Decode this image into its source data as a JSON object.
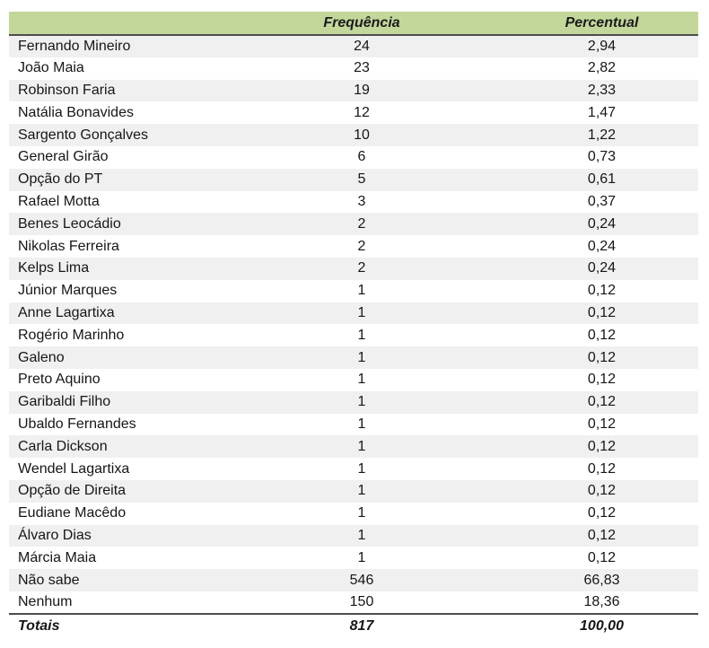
{
  "colors": {
    "header_bg": "#c3d79b",
    "stripe_bg": "#f0f0f0",
    "border": "#4d4d4d"
  },
  "table": {
    "columns": {
      "name": "",
      "frequency": "Frequência",
      "percentual": "Percentual"
    },
    "rows": [
      {
        "name": "Fernando Mineiro",
        "frequency": "24",
        "percentual": "2,94"
      },
      {
        "name": "João Maia",
        "frequency": "23",
        "percentual": "2,82"
      },
      {
        "name": "Robinson Faria",
        "frequency": "19",
        "percentual": "2,33"
      },
      {
        "name": "Natália Bonavides",
        "frequency": "12",
        "percentual": "1,47"
      },
      {
        "name": "Sargento Gonçalves",
        "frequency": "10",
        "percentual": "1,22"
      },
      {
        "name": "General Girão",
        "frequency": "6",
        "percentual": "0,73"
      },
      {
        "name": "Opção do PT",
        "frequency": "5",
        "percentual": "0,61"
      },
      {
        "name": "Rafael Motta",
        "frequency": "3",
        "percentual": "0,37"
      },
      {
        "name": "Benes Leocádio",
        "frequency": "2",
        "percentual": "0,24"
      },
      {
        "name": "Nikolas Ferreira",
        "frequency": "2",
        "percentual": "0,24"
      },
      {
        "name": "Kelps Lima",
        "frequency": "2",
        "percentual": "0,24"
      },
      {
        "name": "Júnior Marques",
        "frequency": "1",
        "percentual": "0,12"
      },
      {
        "name": "Anne Lagartixa",
        "frequency": "1",
        "percentual": "0,12"
      },
      {
        "name": "Rogério Marinho",
        "frequency": "1",
        "percentual": "0,12"
      },
      {
        "name": "Galeno",
        "frequency": "1",
        "percentual": "0,12"
      },
      {
        "name": "Preto Aquino",
        "frequency": "1",
        "percentual": "0,12"
      },
      {
        "name": "Garibaldi Filho",
        "frequency": "1",
        "percentual": "0,12"
      },
      {
        "name": "Ubaldo Fernandes",
        "frequency": "1",
        "percentual": "0,12"
      },
      {
        "name": "Carla Dickson",
        "frequency": "1",
        "percentual": "0,12"
      },
      {
        "name": "Wendel Lagartixa",
        "frequency": "1",
        "percentual": "0,12"
      },
      {
        "name": "Opção de Direita",
        "frequency": "1",
        "percentual": "0,12"
      },
      {
        "name": "Eudiane Macêdo",
        "frequency": "1",
        "percentual": "0,12"
      },
      {
        "name": "Álvaro Dias",
        "frequency": "1",
        "percentual": "0,12"
      },
      {
        "name": "Márcia Maia",
        "frequency": "1",
        "percentual": "0,12"
      },
      {
        "name": "Não sabe",
        "frequency": "546",
        "percentual": "66,83"
      },
      {
        "name": "Nenhum",
        "frequency": "150",
        "percentual": "18,36"
      }
    ],
    "totals": {
      "name": "Totais",
      "frequency": "817",
      "percentual": "100,00"
    }
  }
}
